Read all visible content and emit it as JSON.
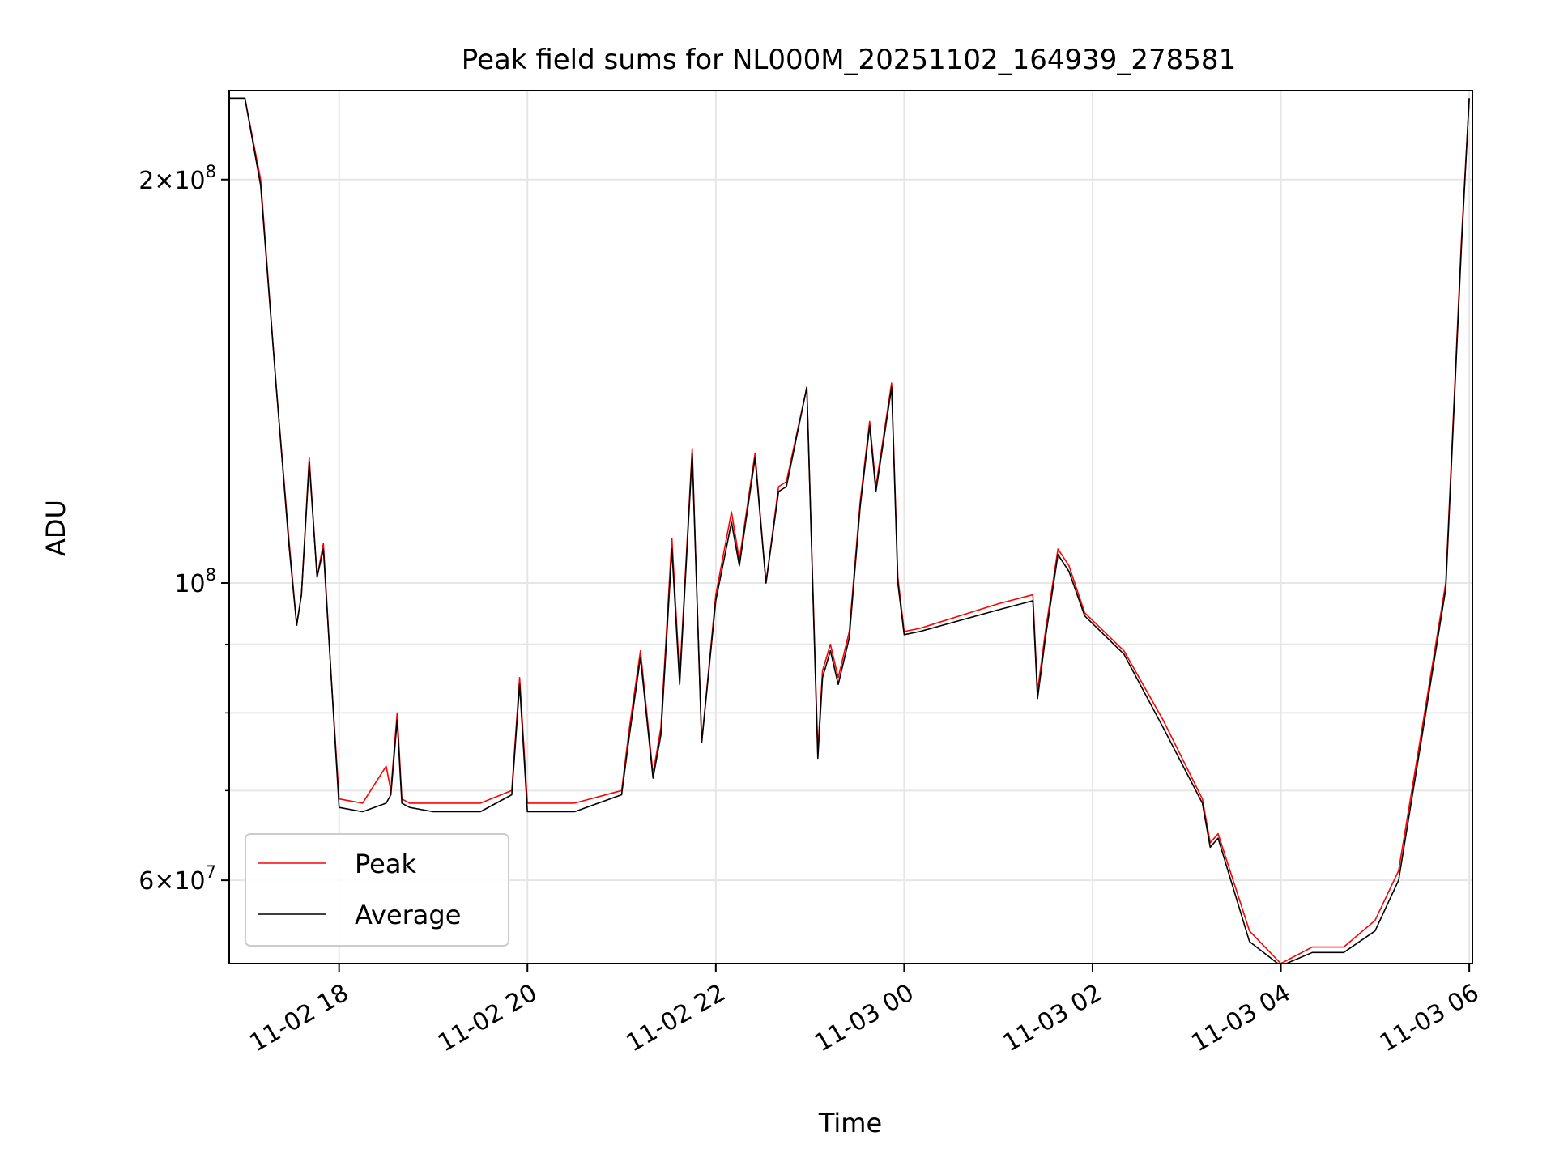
{
  "chart_data": {
    "type": "line",
    "title": "Peak field sums for NL000M_20251102_164939_278581",
    "xlabel": "Time",
    "ylabel": "ADU",
    "yscale": "log",
    "xlim": [
      "2025-11-02 16:50",
      "2025-11-03 06:02"
    ],
    "ylim": [
      52000000,
      233000000
    ],
    "x_ticks": [
      "11-02 18",
      "11-02 20",
      "11-02 22",
      "11-03 00",
      "11-03 02",
      "11-03 04",
      "11-03 06"
    ],
    "y_ticks": [
      {
        "value": 60000000,
        "mantissa": "6",
        "exp": "7"
      },
      {
        "value": 100000000,
        "mantissa": "",
        "exp": "8"
      },
      {
        "value": 200000000,
        "mantissa": "2",
        "exp": "8"
      }
    ],
    "y_minor_ticks": [
      70000000,
      80000000,
      90000000
    ],
    "grid": true,
    "legend_position": "lower-left",
    "series": [
      {
        "name": "Peak",
        "color": "#ff0000",
        "x": [
          "2025-11-02 16:50",
          "2025-11-02 17:00",
          "2025-11-02 17:10",
          "2025-11-02 17:20",
          "2025-11-02 17:28",
          "2025-11-02 17:33",
          "2025-11-02 17:36",
          "2025-11-02 17:41",
          "2025-11-02 17:46",
          "2025-11-02 17:50",
          "2025-11-02 17:55",
          "2025-11-02 18:00",
          "2025-11-02 18:15",
          "2025-11-02 18:30",
          "2025-11-02 18:33",
          "2025-11-02 18:37",
          "2025-11-02 18:40",
          "2025-11-02 18:45",
          "2025-11-02 19:00",
          "2025-11-02 19:30",
          "2025-11-02 19:50",
          "2025-11-02 19:55",
          "2025-11-02 20:00",
          "2025-11-02 20:30",
          "2025-11-02 21:00",
          "2025-11-02 21:05",
          "2025-11-02 21:12",
          "2025-11-02 21:20",
          "2025-11-02 21:25",
          "2025-11-02 21:32",
          "2025-11-02 21:37",
          "2025-11-02 21:45",
          "2025-11-02 21:51",
          "2025-11-02 22:00",
          "2025-11-02 22:10",
          "2025-11-02 22:15",
          "2025-11-02 22:25",
          "2025-11-02 22:32",
          "2025-11-02 22:40",
          "2025-11-02 22:45",
          "2025-11-02 22:58",
          "2025-11-02 23:05",
          "2025-11-02 23:08",
          "2025-11-02 23:13",
          "2025-11-02 23:18",
          "2025-11-02 23:25",
          "2025-11-02 23:32",
          "2025-11-02 23:38",
          "2025-11-02 23:42",
          "2025-11-02 23:52",
          "2025-11-02 23:56",
          "2025-11-03 00:00",
          "2025-11-03 00:10",
          "2025-11-03 01:00",
          "2025-11-03 01:22",
          "2025-11-03 01:25",
          "2025-11-03 01:30",
          "2025-11-03 01:38",
          "2025-11-03 01:45",
          "2025-11-03 01:55",
          "2025-11-03 02:20",
          "2025-11-03 02:45",
          "2025-11-03 03:10",
          "2025-11-03 03:15",
          "2025-11-03 03:20",
          "2025-11-03 03:40",
          "2025-11-03 04:00",
          "2025-11-03 04:20",
          "2025-11-03 04:40",
          "2025-11-03 05:00",
          "2025-11-03 05:15",
          "2025-11-03 05:30",
          "2025-11-03 05:45",
          "2025-11-03 05:55",
          "2025-11-03 06:00"
        ],
        "y": [
          230000000,
          230000000,
          200000000,
          140000000,
          108000000,
          93000000,
          98000000,
          124000000,
          101000000,
          107000000,
          85000000,
          69000000,
          68500000,
          73000000,
          70000000,
          80000000,
          69000000,
          68500000,
          68500000,
          68500000,
          70000000,
          85000000,
          68500000,
          68500000,
          70000000,
          78000000,
          89000000,
          72000000,
          78000000,
          108000000,
          85000000,
          126000000,
          76000000,
          98000000,
          113000000,
          104000000,
          125000000,
          100000000,
          118000000,
          119000000,
          140000000,
          75000000,
          86000000,
          90000000,
          85000000,
          92000000,
          115000000,
          132000000,
          118000000,
          141000000,
          101000000,
          92000000,
          92500000,
          96500000,
          98000000,
          83000000,
          92000000,
          106000000,
          103000000,
          95000000,
          89000000,
          79000000,
          69000000,
          64000000,
          65000000,
          55000000,
          52000000,
          53500000,
          53500000,
          56000000,
          61000000,
          78000000,
          100000000,
          180000000,
          230000000
        ]
      },
      {
        "name": "Average",
        "color": "#000000",
        "x": [
          "2025-11-02 16:50",
          "2025-11-02 17:00",
          "2025-11-02 17:10",
          "2025-11-02 17:20",
          "2025-11-02 17:28",
          "2025-11-02 17:33",
          "2025-11-02 17:36",
          "2025-11-02 17:41",
          "2025-11-02 17:46",
          "2025-11-02 17:50",
          "2025-11-02 17:55",
          "2025-11-02 18:00",
          "2025-11-02 18:15",
          "2025-11-02 18:30",
          "2025-11-02 18:33",
          "2025-11-02 18:37",
          "2025-11-02 18:40",
          "2025-11-02 18:45",
          "2025-11-02 19:00",
          "2025-11-02 19:30",
          "2025-11-02 19:50",
          "2025-11-02 19:55",
          "2025-11-02 20:00",
          "2025-11-02 20:30",
          "2025-11-02 21:00",
          "2025-11-02 21:05",
          "2025-11-02 21:12",
          "2025-11-02 21:20",
          "2025-11-02 21:25",
          "2025-11-02 21:32",
          "2025-11-02 21:37",
          "2025-11-02 21:45",
          "2025-11-02 21:51",
          "2025-11-02 22:00",
          "2025-11-02 22:10",
          "2025-11-02 22:15",
          "2025-11-02 22:25",
          "2025-11-02 22:32",
          "2025-11-02 22:40",
          "2025-11-02 22:45",
          "2025-11-02 22:58",
          "2025-11-02 23:05",
          "2025-11-02 23:08",
          "2025-11-02 23:13",
          "2025-11-02 23:18",
          "2025-11-02 23:25",
          "2025-11-02 23:32",
          "2025-11-02 23:38",
          "2025-11-02 23:42",
          "2025-11-02 23:52",
          "2025-11-02 23:56",
          "2025-11-03 00:00",
          "2025-11-03 00:10",
          "2025-11-03 01:00",
          "2025-11-03 01:22",
          "2025-11-03 01:25",
          "2025-11-03 01:30",
          "2025-11-03 01:38",
          "2025-11-03 01:45",
          "2025-11-03 01:55",
          "2025-11-03 02:20",
          "2025-11-03 02:45",
          "2025-11-03 03:10",
          "2025-11-03 03:15",
          "2025-11-03 03:20",
          "2025-11-03 03:40",
          "2025-11-03 04:00",
          "2025-11-03 04:20",
          "2025-11-03 04:40",
          "2025-11-03 05:00",
          "2025-11-03 05:15",
          "2025-11-03 05:30",
          "2025-11-03 05:45",
          "2025-11-03 05:55",
          "2025-11-03 06:00"
        ],
        "y": [
          230000000,
          230000000,
          198000000,
          140000000,
          107000000,
          93000000,
          98000000,
          123000000,
          101000000,
          106000000,
          85000000,
          68000000,
          67500000,
          68500000,
          69500000,
          79000000,
          68500000,
          68000000,
          67500000,
          67500000,
          69500000,
          84000000,
          67500000,
          67500000,
          69500000,
          77000000,
          88000000,
          71500000,
          77000000,
          106000000,
          84000000,
          125000000,
          76000000,
          97000000,
          111000000,
          103000000,
          124000000,
          100000000,
          117000000,
          118000000,
          140000000,
          74000000,
          85000000,
          89000000,
          84000000,
          91000000,
          114000000,
          131000000,
          117000000,
          140000000,
          100000000,
          91500000,
          92000000,
          95500000,
          97000000,
          82000000,
          91000000,
          105000000,
          102000000,
          94500000,
          88500000,
          78000000,
          68500000,
          63500000,
          64500000,
          54000000,
          51800000,
          53000000,
          53000000,
          55000000,
          60000000,
          77000000,
          99000000,
          178000000,
          230000000
        ]
      }
    ]
  }
}
